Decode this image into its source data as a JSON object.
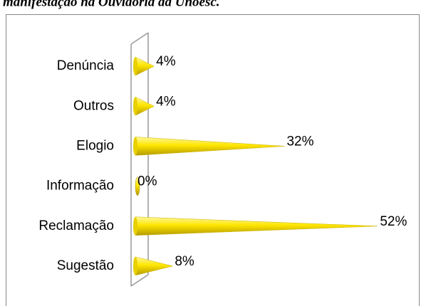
{
  "caption": "manifestação na Ouvidoria da Unoesc.",
  "chart_data": {
    "type": "cone-bar",
    "categories": [
      "Denúncia",
      "Outros",
      "Elogio",
      "Informação",
      "Reclamação",
      "Sugestão"
    ],
    "values": [
      4,
      4,
      32,
      0,
      52,
      8
    ],
    "value_labels": [
      "4%",
      "4%",
      "32%",
      "0%",
      "52%",
      "8%"
    ],
    "color": "#ffe600",
    "xlim": [
      0,
      55
    ]
  }
}
